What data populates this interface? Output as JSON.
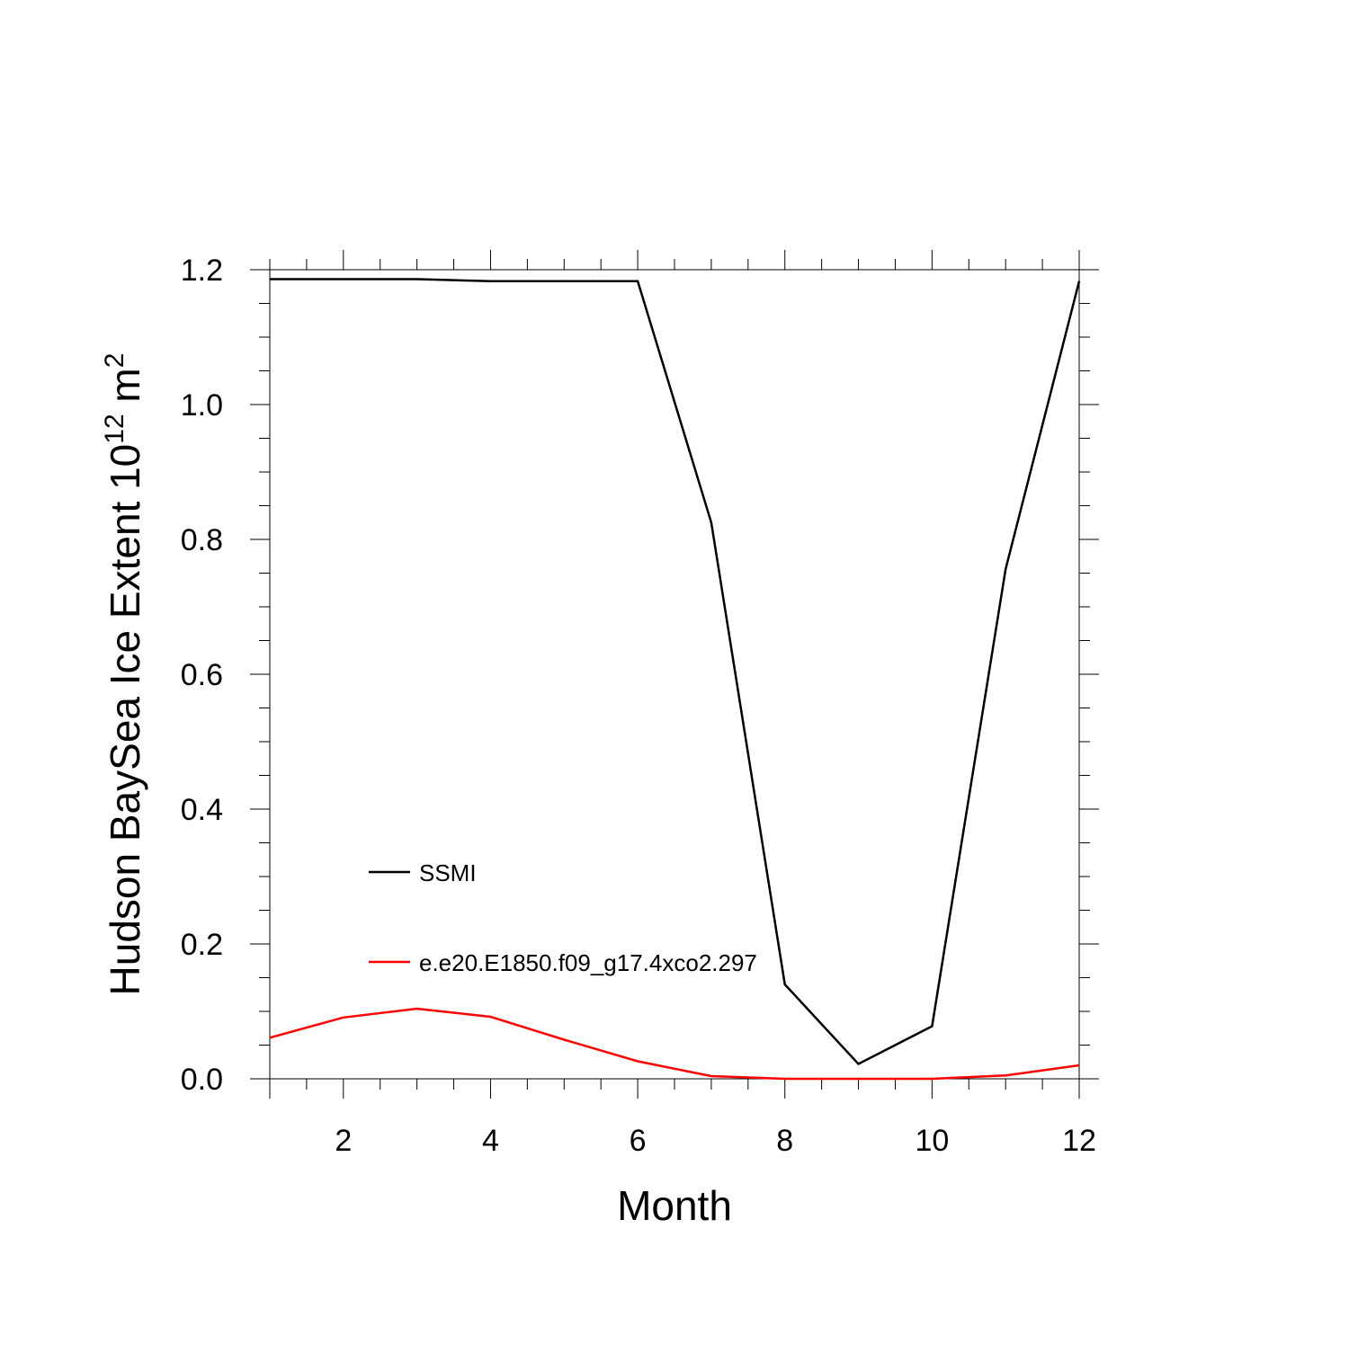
{
  "chart_data": {
    "type": "line",
    "title": "",
    "xlabel": "Month",
    "ylabel": {
      "main": "Hudson BaySea Ice Extent 10",
      "superscript": "12",
      "unit": " m",
      "unit_superscript": "2"
    },
    "xlim": [
      1,
      12
    ],
    "ylim": [
      0.0,
      1.2
    ],
    "x_ticks": [
      2,
      4,
      6,
      8,
      10,
      12
    ],
    "x_tick_labels": [
      "2",
      "4",
      "6",
      "8",
      "10",
      "12"
    ],
    "y_ticks": [
      0.0,
      0.2,
      0.4,
      0.6,
      0.8,
      1.0,
      1.2
    ],
    "y_tick_labels": [
      "0.0",
      "0.2",
      "0.4",
      "0.6",
      "0.8",
      "1.0",
      "1.2"
    ],
    "x": [
      1,
      2,
      3,
      4,
      5,
      6,
      7,
      8,
      9,
      10,
      11,
      12
    ],
    "series": [
      {
        "name": "SSMI",
        "color": "#000000",
        "values": [
          1.186,
          1.186,
          1.186,
          1.183,
          1.183,
          1.183,
          0.825,
          0.14,
          0.022,
          0.078,
          0.756,
          1.183
        ]
      },
      {
        "name": "e.e20.E1850.f09_g17.4xco2.297",
        "color": "#ff0000",
        "values": [
          0.061,
          0.091,
          0.104,
          0.092,
          0.058,
          0.026,
          0.004,
          0.0,
          0.0,
          0.0,
          0.005,
          0.02
        ]
      }
    ],
    "grid": false,
    "legend_position": "lower-left inside"
  }
}
